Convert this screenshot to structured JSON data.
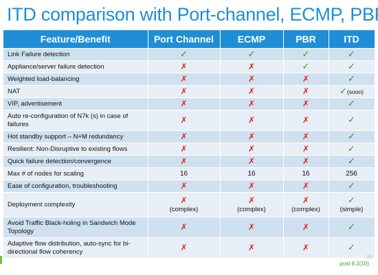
{
  "title": "ITD comparison with Port-channel, ECMP, PBR",
  "colors": {
    "title": "#1b8fd6",
    "header_bg": "#1f8ed6",
    "row_dark": "#cfe0ef",
    "row_light": "#e7eef6",
    "check": "#2e9a2a",
    "cross": "#e0201a"
  },
  "icons": {
    "check": "✓",
    "cross": "✗"
  },
  "table": {
    "headers": [
      "Feature/Benefit",
      "Port Channel",
      "ECMP",
      "PBR",
      "ITD"
    ],
    "rows": [
      {
        "feature": "Link Failure detection",
        "cells": [
          {
            "icon": "check"
          },
          {
            "icon": "check"
          },
          {
            "icon": "check"
          },
          {
            "icon": "check"
          }
        ]
      },
      {
        "feature": "Appliance/server failure detection",
        "cells": [
          {
            "icon": "cross"
          },
          {
            "icon": "cross"
          },
          {
            "icon": "check"
          },
          {
            "icon": "check"
          }
        ]
      },
      {
        "feature": "Weighted load-balancing",
        "cells": [
          {
            "icon": "cross"
          },
          {
            "icon": "cross"
          },
          {
            "icon": "cross"
          },
          {
            "icon": "check"
          }
        ]
      },
      {
        "feature": "NAT",
        "cells": [
          {
            "icon": "cross"
          },
          {
            "icon": "cross"
          },
          {
            "icon": "cross"
          },
          {
            "icon": "check",
            "note": "(soon)"
          }
        ]
      },
      {
        "feature": "VIP, advertisement",
        "cells": [
          {
            "icon": "cross"
          },
          {
            "icon": "cross"
          },
          {
            "icon": "cross"
          },
          {
            "icon": "check"
          }
        ]
      },
      {
        "feature": "Auto re-configuration of N7k (s) in case of failures",
        "cells": [
          {
            "icon": "cross"
          },
          {
            "icon": "cross"
          },
          {
            "icon": "cross"
          },
          {
            "icon": "check"
          }
        ]
      },
      {
        "feature": "Hot standby support – N+M redundancy",
        "cells": [
          {
            "icon": "cross"
          },
          {
            "icon": "cross"
          },
          {
            "icon": "cross"
          },
          {
            "icon": "check"
          }
        ]
      },
      {
        "feature": "Resilient: Non-Disruptive to existing flows",
        "cells": [
          {
            "icon": "cross"
          },
          {
            "icon": "cross"
          },
          {
            "icon": "cross"
          },
          {
            "icon": "check"
          }
        ]
      },
      {
        "feature": "Quick failure detection/convergence",
        "cells": [
          {
            "icon": "cross"
          },
          {
            "icon": "cross"
          },
          {
            "icon": "cross"
          },
          {
            "icon": "check"
          }
        ]
      },
      {
        "feature": "Max  # of nodes for scaling",
        "cells": [
          {
            "text": "16"
          },
          {
            "text": "16"
          },
          {
            "text": "16"
          },
          {
            "text": "256"
          }
        ]
      },
      {
        "feature": "Ease of configuration, troubleshooting",
        "cells": [
          {
            "icon": "cross"
          },
          {
            "icon": "cross"
          },
          {
            "icon": "cross"
          },
          {
            "icon": "check"
          }
        ]
      },
      {
        "feature": "Deployment complexity",
        "cells": [
          {
            "icon": "cross",
            "sub": "(complex)"
          },
          {
            "icon": "cross",
            "sub": "(complex)"
          },
          {
            "icon": "cross",
            "sub": "(complex)"
          },
          {
            "icon": "check",
            "sub": "(simple)"
          }
        ]
      },
      {
        "feature": "Avoid Traffic Black-holing in Sandwich Mode Topology",
        "cells": [
          {
            "icon": "cross"
          },
          {
            "icon": "cross"
          },
          {
            "icon": "cross"
          },
          {
            "icon": "check"
          }
        ]
      },
      {
        "feature": "Adaptive flow distribution, auto-sync for bi-directional flow coherency",
        "cells": [
          {
            "icon": "cross"
          },
          {
            "icon": "cross"
          },
          {
            "icon": "cross"
          },
          {
            "icon": "check"
          }
        ]
      }
    ]
  },
  "footnote": "post 6.2(10)",
  "page_number": "10"
}
